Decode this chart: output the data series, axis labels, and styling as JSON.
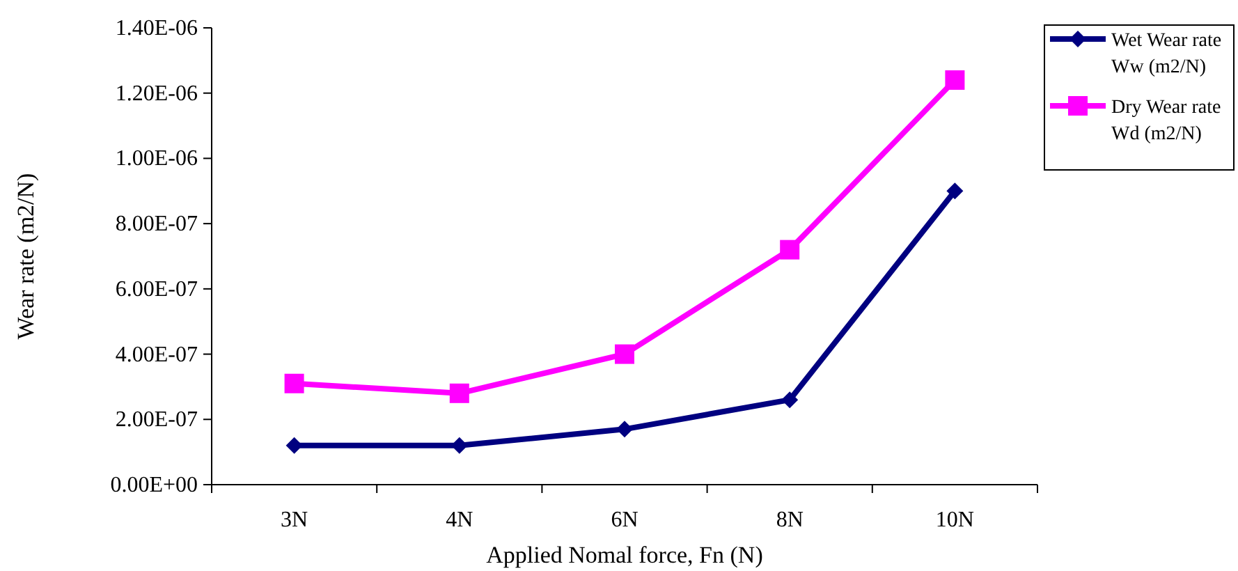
{
  "chart_data": {
    "type": "line",
    "xlabel": "Applied Nomal force, Fn (N)",
    "ylabel": "Wear rate (m2/N)",
    "categories": [
      "3N",
      "4N",
      "6N",
      "8N",
      "10N"
    ],
    "series": [
      {
        "name": "Wet Wear rate Ww (m2/N)",
        "color": "#000080",
        "marker": "diamond",
        "values": [
          1.2e-07,
          1.2e-07,
          1.7e-07,
          2.6e-07,
          9e-07
        ]
      },
      {
        "name": "Dry Wear rate Wd (m2/N)",
        "color": "#ff00ff",
        "marker": "square",
        "values": [
          3.1e-07,
          2.8e-07,
          4e-07,
          7.2e-07,
          1.24e-06
        ]
      }
    ],
    "ylim": [
      0,
      1.4e-06
    ],
    "yticks": [
      {
        "value": 0,
        "label": "0.00E+00"
      },
      {
        "value": 2e-07,
        "label": "2.00E-07"
      },
      {
        "value": 4e-07,
        "label": "4.00E-07"
      },
      {
        "value": 6e-07,
        "label": "6.00E-07"
      },
      {
        "value": 8e-07,
        "label": "8.00E-07"
      },
      {
        "value": 1e-06,
        "label": "1.00E-06"
      },
      {
        "value": 1.2e-06,
        "label": "1.20E-06"
      },
      {
        "value": 1.4e-06,
        "label": "1.40E-06"
      }
    ],
    "grid": false,
    "legend": "top right"
  }
}
